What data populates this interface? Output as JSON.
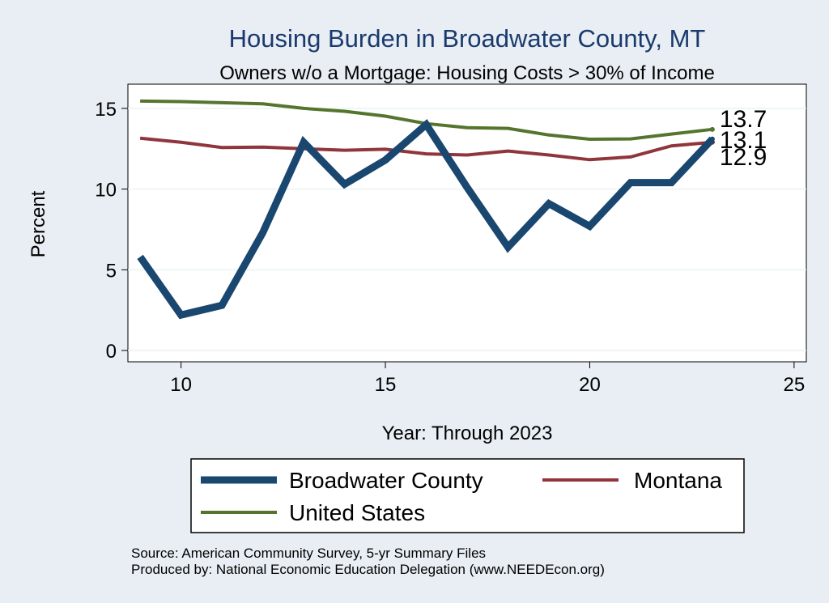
{
  "chart_data": {
    "type": "line",
    "title": "Housing Burden in Broadwater County, MT",
    "subtitle": "Owners w/o a Mortgage: Housing Costs > 30% of Income",
    "xlabel": "Year: Through 2023",
    "ylabel": "Percent",
    "xlim": [
      8.7,
      25.3
    ],
    "ylim": [
      -0.7,
      16.5
    ],
    "xticks": [
      10,
      15,
      20,
      25
    ],
    "yticks": [
      0,
      5,
      10,
      15
    ],
    "grid": true,
    "legend_position": "bottom",
    "x": [
      9,
      10,
      11,
      12,
      13,
      14,
      15,
      16,
      17,
      18,
      19,
      20,
      21,
      22,
      23
    ],
    "series": [
      {
        "name": "Broadwater County",
        "color": "#1a476f",
        "values": [
          5.8,
          2.2,
          2.8,
          7.3,
          12.9,
          10.3,
          11.8,
          14.0,
          10.1,
          6.4,
          9.1,
          7.7,
          10.4,
          10.4,
          13.1
        ],
        "end_label": "13.1"
      },
      {
        "name": "Montana",
        "color": "#90353b",
        "values": [
          13.15,
          12.9,
          12.58,
          12.6,
          12.5,
          12.41,
          12.47,
          12.18,
          12.11,
          12.36,
          12.11,
          11.82,
          11.99,
          12.68,
          12.9
        ],
        "end_label": "12.9"
      },
      {
        "name": "United States",
        "color": "#55752f",
        "values": [
          15.45,
          15.42,
          15.35,
          15.28,
          15.0,
          14.82,
          14.52,
          14.06,
          13.8,
          13.76,
          13.35,
          13.09,
          13.11,
          13.41,
          13.7
        ],
        "end_label": "13.7"
      }
    ]
  },
  "notes": {
    "source": "Source: American Community Survey, 5-yr Summary Files",
    "produced_by": "Produced by: National Economic Education Delegation (www.NEEDEcon.org)"
  }
}
